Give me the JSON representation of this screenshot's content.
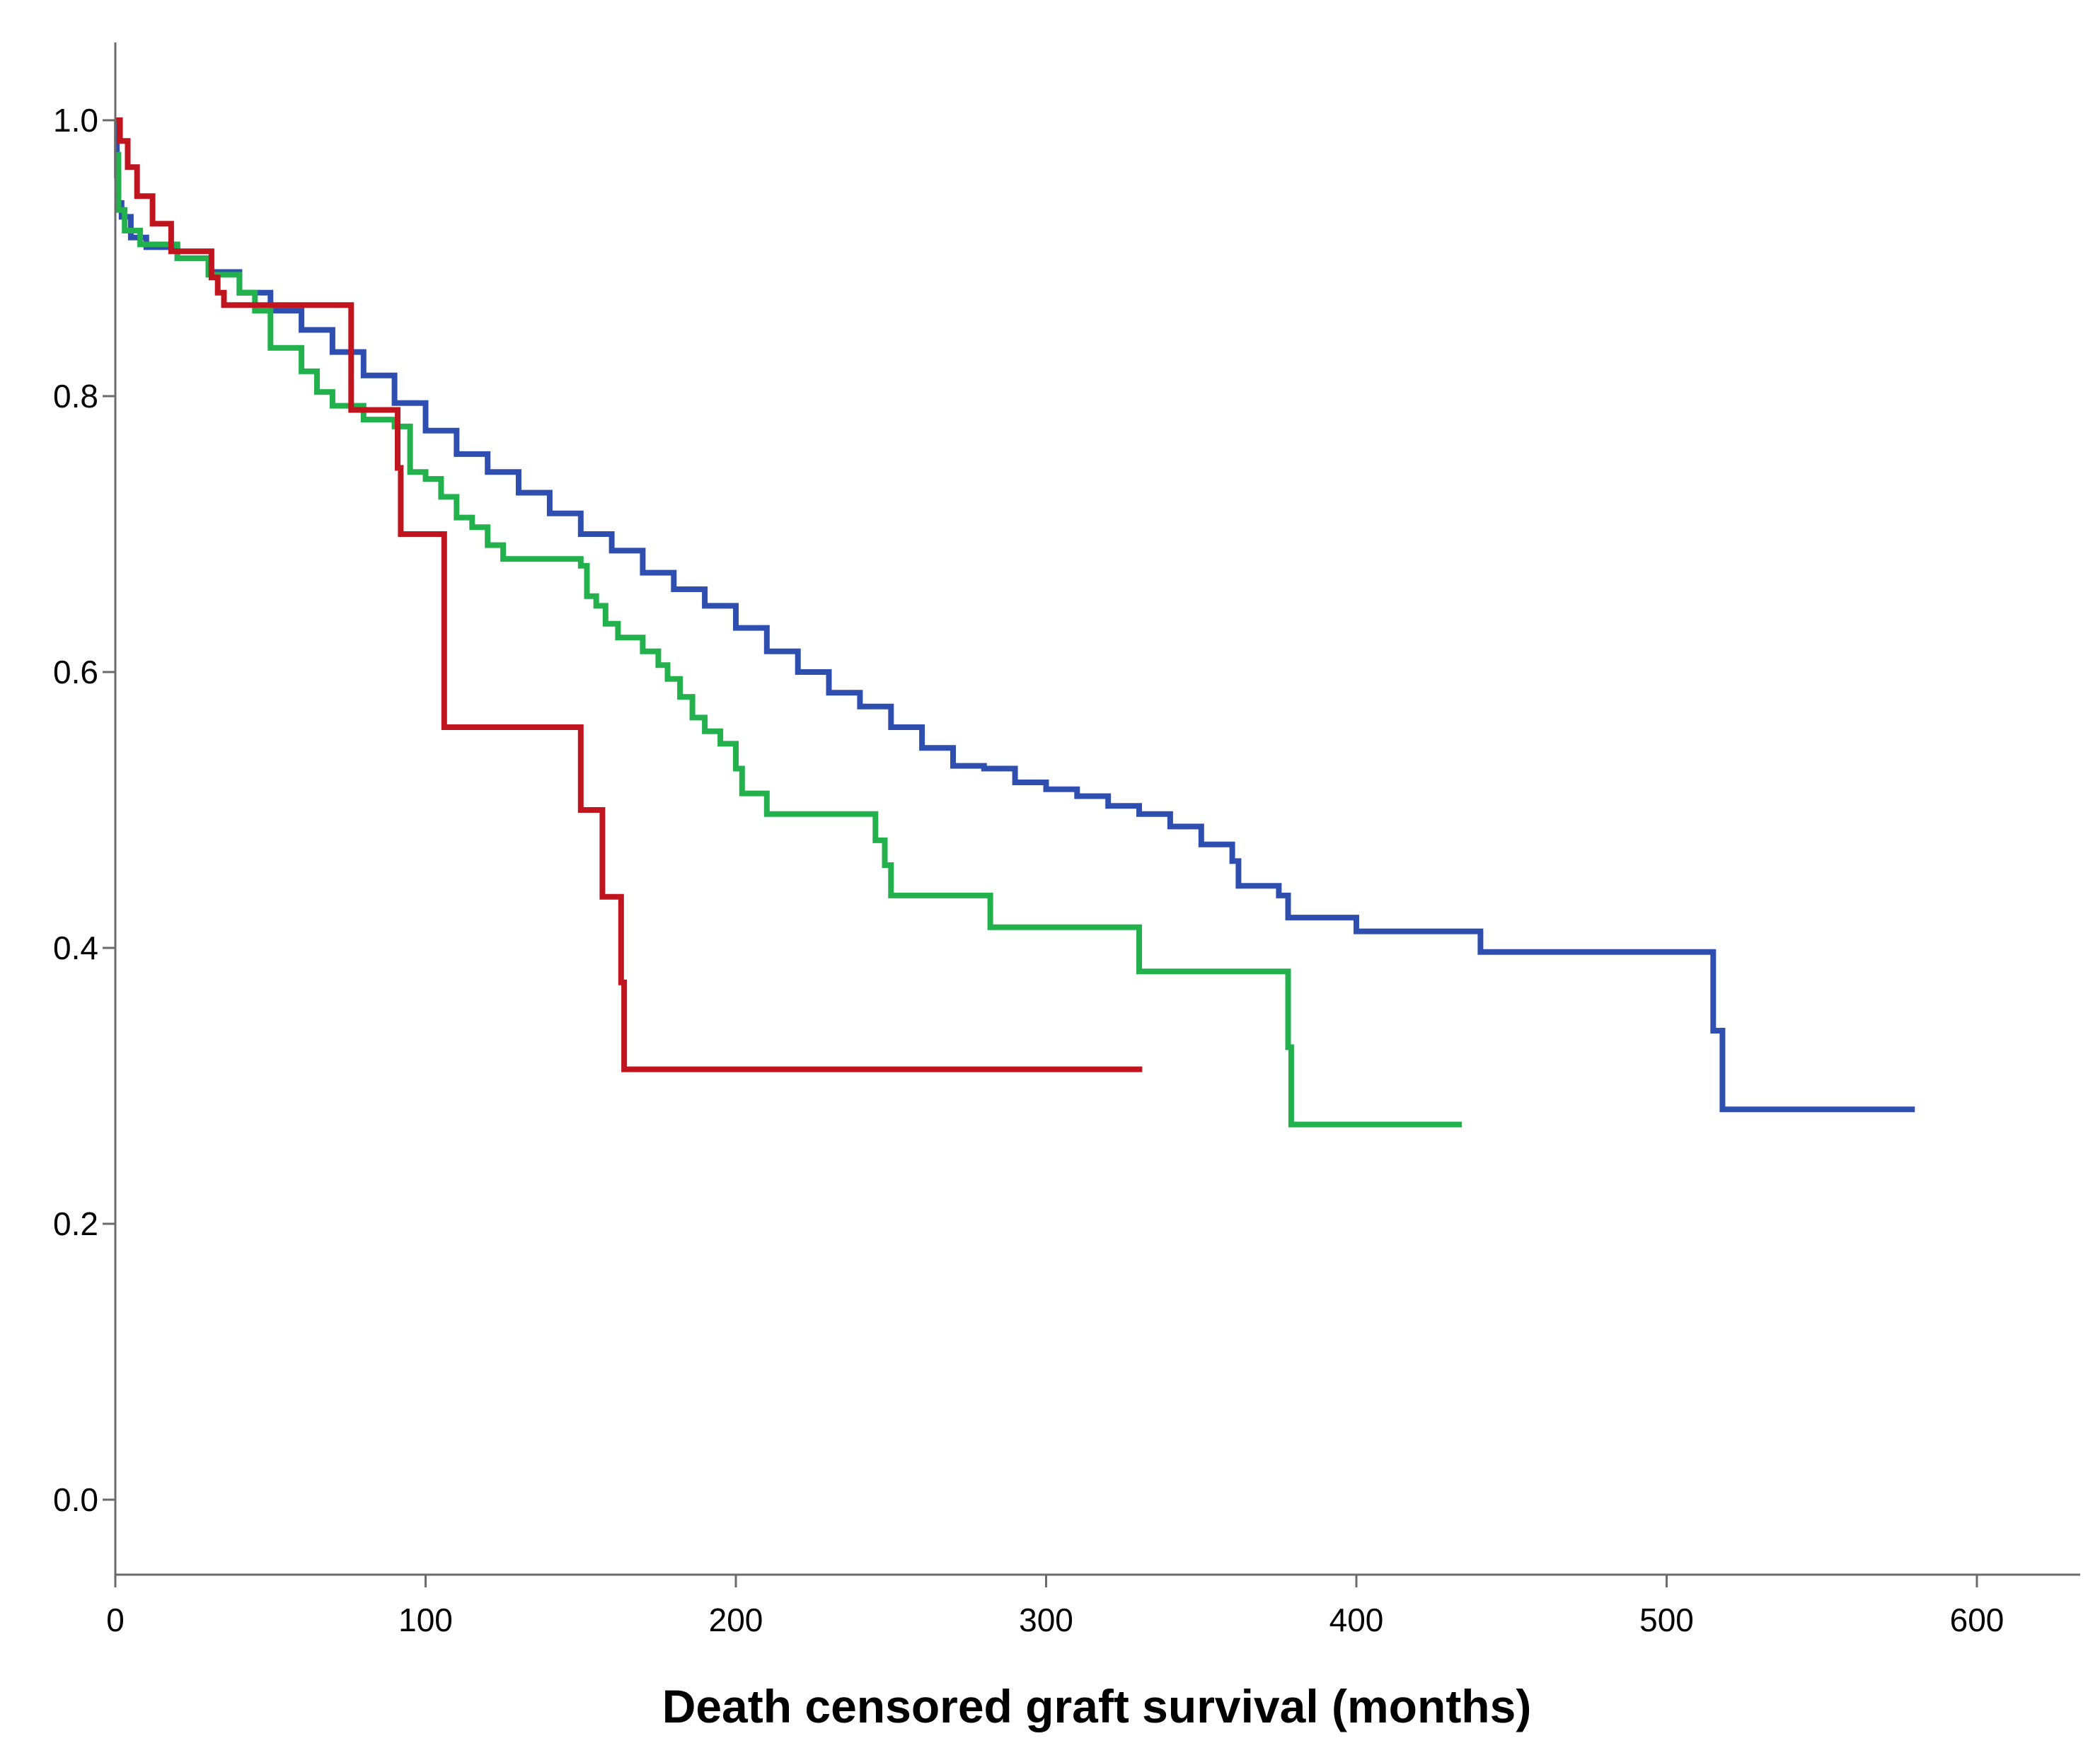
{
  "chart_data": {
    "type": "line",
    "title": "",
    "xlabel": "Death censored graft survival (months)",
    "ylabel": "",
    "xlim": [
      0,
      634
    ],
    "ylim": [
      -0.05,
      1.055
    ],
    "xticks": [
      0,
      100,
      200,
      300,
      400,
      500,
      600
    ],
    "xtick_labels": [
      "0",
      "100",
      "200",
      "300",
      "400",
      "500",
      "600"
    ],
    "yticks": [
      0.0,
      0.2,
      0.4,
      0.6,
      0.8,
      1.0
    ],
    "ytick_labels": [
      "0.0",
      "0.2",
      "0.4",
      "0.6",
      "0.8",
      "1.0"
    ],
    "grid": false,
    "legend": "none",
    "series": [
      {
        "name": "blue",
        "color": "#2e4fb0",
        "step": true,
        "points": [
          [
            0,
            1.0
          ],
          [
            0.5,
            0.96
          ],
          [
            1,
            0.94
          ],
          [
            2,
            0.93
          ],
          [
            5,
            0.915
          ],
          [
            10,
            0.908
          ],
          [
            20,
            0.9
          ],
          [
            30,
            0.89
          ],
          [
            40,
            0.875
          ],
          [
            50,
            0.862
          ],
          [
            60,
            0.848
          ],
          [
            70,
            0.832
          ],
          [
            80,
            0.815
          ],
          [
            90,
            0.795
          ],
          [
            100,
            0.775
          ],
          [
            110,
            0.758
          ],
          [
            120,
            0.745
          ],
          [
            130,
            0.73
          ],
          [
            140,
            0.715
          ],
          [
            150,
            0.7
          ],
          [
            160,
            0.688
          ],
          [
            170,
            0.672
          ],
          [
            180,
            0.66
          ],
          [
            190,
            0.648
          ],
          [
            200,
            0.632
          ],
          [
            210,
            0.615
          ],
          [
            220,
            0.6
          ],
          [
            230,
            0.585
          ],
          [
            240,
            0.575
          ],
          [
            250,
            0.56
          ],
          [
            260,
            0.545
          ],
          [
            270,
            0.532
          ],
          [
            280,
            0.53
          ],
          [
            290,
            0.52
          ],
          [
            300,
            0.515
          ],
          [
            310,
            0.51
          ],
          [
            320,
            0.503
          ],
          [
            330,
            0.497
          ],
          [
            340,
            0.488
          ],
          [
            350,
            0.475
          ],
          [
            360,
            0.463
          ],
          [
            362,
            0.445
          ],
          [
            375,
            0.438
          ],
          [
            378,
            0.422
          ],
          [
            400,
            0.412
          ],
          [
            440,
            0.397
          ],
          [
            515,
            0.34
          ],
          [
            518,
            0.283
          ],
          [
            580,
            0.283
          ]
        ]
      },
      {
        "name": "green",
        "color": "#22b14c",
        "step": true,
        "points": [
          [
            0,
            0.975
          ],
          [
            1,
            0.935
          ],
          [
            3,
            0.92
          ],
          [
            8,
            0.91
          ],
          [
            20,
            0.9
          ],
          [
            30,
            0.888
          ],
          [
            40,
            0.875
          ],
          [
            45,
            0.862
          ],
          [
            50,
            0.835
          ],
          [
            60,
            0.818
          ],
          [
            65,
            0.803
          ],
          [
            70,
            0.793
          ],
          [
            80,
            0.783
          ],
          [
            90,
            0.778
          ],
          [
            95,
            0.745
          ],
          [
            100,
            0.74
          ],
          [
            105,
            0.727
          ],
          [
            110,
            0.712
          ],
          [
            115,
            0.705
          ],
          [
            120,
            0.692
          ],
          [
            125,
            0.682
          ],
          [
            150,
            0.677
          ],
          [
            152,
            0.655
          ],
          [
            155,
            0.648
          ],
          [
            158,
            0.635
          ],
          [
            162,
            0.625
          ],
          [
            170,
            0.615
          ],
          [
            175,
            0.605
          ],
          [
            178,
            0.595
          ],
          [
            182,
            0.582
          ],
          [
            186,
            0.567
          ],
          [
            190,
            0.557
          ],
          [
            195,
            0.548
          ],
          [
            200,
            0.53
          ],
          [
            202,
            0.512
          ],
          [
            210,
            0.497
          ],
          [
            245,
            0.478
          ],
          [
            248,
            0.46
          ],
          [
            250,
            0.438
          ],
          [
            282,
            0.415
          ],
          [
            330,
            0.383
          ],
          [
            378,
            0.328
          ],
          [
            379,
            0.272
          ],
          [
            434,
            0.272
          ]
        ]
      },
      {
        "name": "red",
        "color": "#c0141e",
        "step": true,
        "points": [
          [
            0,
            1.0
          ],
          [
            1.5,
            0.985
          ],
          [
            4,
            0.966
          ],
          [
            7,
            0.945
          ],
          [
            12,
            0.925
          ],
          [
            18,
            0.905
          ],
          [
            31,
            0.886
          ],
          [
            33,
            0.875
          ],
          [
            35,
            0.866
          ],
          [
            76,
            0.79
          ],
          [
            91,
            0.748
          ],
          [
            92,
            0.7
          ],
          [
            106,
            0.56
          ],
          [
            150,
            0.5
          ],
          [
            157,
            0.437
          ],
          [
            163,
            0.375
          ],
          [
            164,
            0.312
          ],
          [
            331,
            0.312
          ]
        ]
      }
    ]
  }
}
